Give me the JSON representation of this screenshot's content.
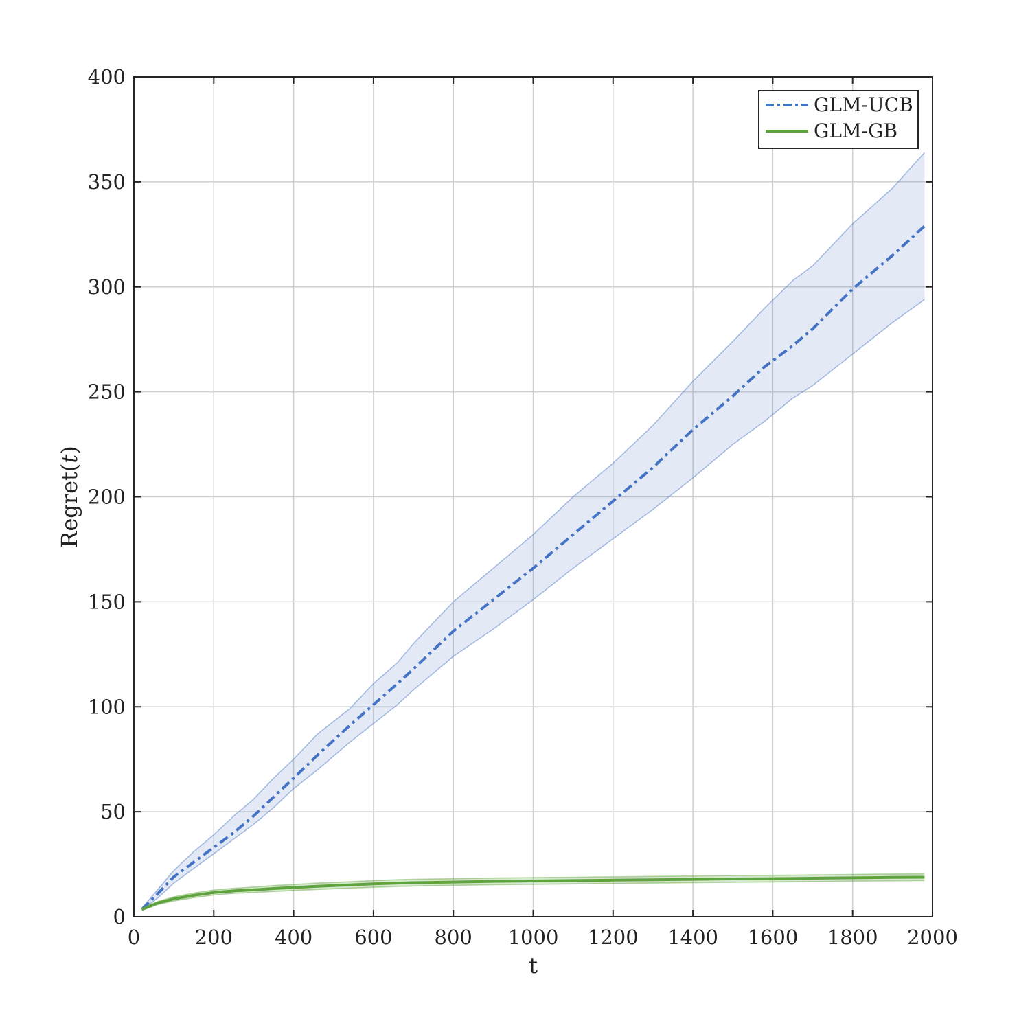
{
  "chart_data": {
    "type": "line",
    "xlabel": "t",
    "ylabel_prefix": "Regret(",
    "ylabel_var": "t",
    "ylabel_suffix": ")",
    "xlim": [
      0,
      2000
    ],
    "ylim": [
      0,
      400
    ],
    "xticks": [
      0,
      200,
      400,
      600,
      800,
      1000,
      1200,
      1400,
      1600,
      1800,
      2000
    ],
    "yticks": [
      0,
      50,
      100,
      150,
      200,
      250,
      300,
      350,
      400
    ],
    "grid": true,
    "legend_position": "top-right",
    "series": [
      {
        "name": "GLM-UCB",
        "color": "#4472C4",
        "band_color": "#4472C4",
        "line_style": "dash-dot",
        "x": [
          20,
          60,
          100,
          150,
          200,
          250,
          300,
          350,
          400,
          460,
          540,
          600,
          660,
          700,
          800,
          900,
          1000,
          1100,
          1200,
          1300,
          1400,
          1500,
          1580,
          1650,
          1700,
          1800,
          1900,
          1980
        ],
        "mean": [
          3.5,
          11,
          19,
          26,
          33,
          40,
          48,
          57,
          66,
          77,
          91,
          101,
          111,
          118,
          136,
          151,
          166,
          182,
          198,
          214,
          232,
          248,
          262,
          272,
          280,
          299,
          315,
          329
        ],
        "upper": [
          4,
          13,
          22,
          31,
          39,
          48,
          56,
          66,
          75,
          87,
          99,
          111,
          121,
          130,
          150,
          166,
          182,
          200,
          216,
          234,
          255,
          274,
          290,
          303,
          310,
          330,
          347,
          364
        ],
        "lower": [
          3,
          9,
          16,
          23,
          30,
          37,
          44,
          52,
          61,
          70,
          83,
          92,
          101,
          108,
          124,
          137,
          151,
          166,
          180,
          194,
          209,
          225,
          236,
          247,
          253,
          268,
          283,
          294
        ]
      },
      {
        "name": "GLM-GB",
        "color": "#5FA33E",
        "band_color": "#5FA33E",
        "line_style": "solid",
        "x": [
          20,
          60,
          100,
          150,
          200,
          250,
          300,
          350,
          400,
          460,
          540,
          600,
          660,
          700,
          800,
          900,
          1000,
          1100,
          1200,
          1300,
          1400,
          1500,
          1580,
          1650,
          1700,
          1800,
          1900,
          1980
        ],
        "mean": [
          3.5,
          6.5,
          8.5,
          10.2,
          11.5,
          12.3,
          12.8,
          13.4,
          13.9,
          14.5,
          15.1,
          15.6,
          16,
          16.2,
          16.5,
          16.8,
          17,
          17.2,
          17.4,
          17.6,
          17.8,
          18,
          18.1,
          18.2,
          18.3,
          18.5,
          18.7,
          18.8
        ],
        "upper": [
          4,
          7.3,
          9.5,
          11.3,
          12.7,
          13.5,
          14.1,
          14.8,
          15.3,
          16,
          16.6,
          17.2,
          17.6,
          17.8,
          18.1,
          18.4,
          18.6,
          18.8,
          19,
          19.2,
          19.4,
          19.6,
          19.7,
          19.8,
          19.9,
          20.1,
          20.3,
          20.4
        ],
        "lower": [
          3,
          5.8,
          7.5,
          9.1,
          10.3,
          11.1,
          11.5,
          12,
          12.5,
          13,
          13.6,
          14,
          14.4,
          14.6,
          14.9,
          15.2,
          15.4,
          15.6,
          15.8,
          16,
          16.2,
          16.4,
          16.5,
          16.6,
          16.7,
          16.9,
          17.1,
          17.2
        ]
      }
    ]
  }
}
